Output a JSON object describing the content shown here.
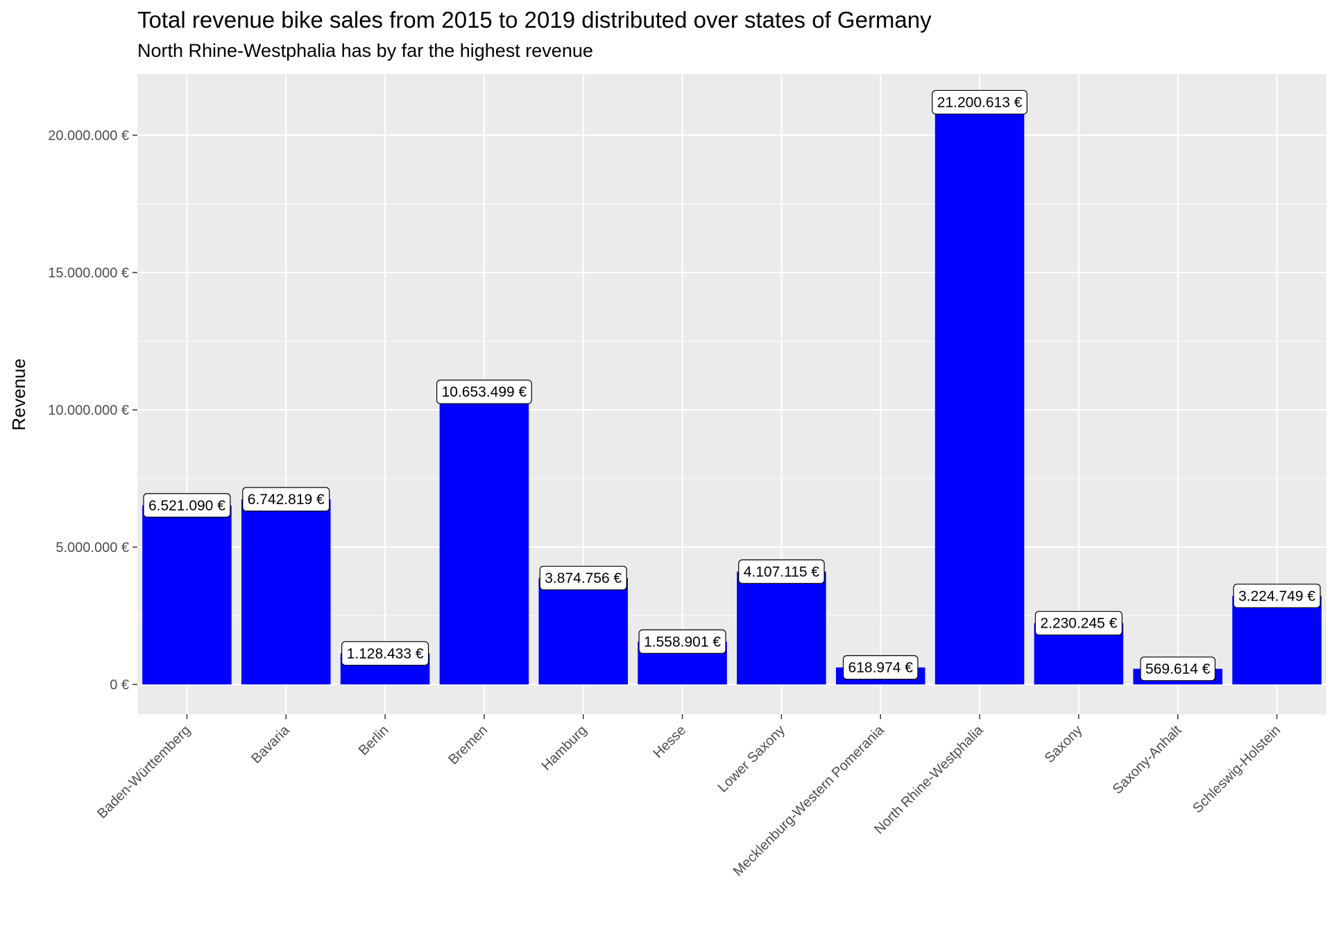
{
  "chart_data": {
    "type": "bar",
    "title": "Total revenue bike sales from 2015 to 2019 distributed over states of Germany",
    "subtitle": "North Rhine-Westphalia has by far the highest revenue",
    "xlabel": "",
    "ylabel": "Revenue",
    "categories": [
      "Baden-Württemberg",
      "Bavaria",
      "Berlin",
      "Bremen",
      "Hamburg",
      "Hesse",
      "Lower Saxony",
      "Mecklenburg-Western Pomerania",
      "North Rhine-Westphalia",
      "Saxony",
      "Saxony-Anhalt",
      "Schleswig-Holstein"
    ],
    "values": [
      6521090,
      6742819,
      1128433,
      10653499,
      3874756,
      1558901,
      4107115,
      618974,
      21200613,
      2230245,
      569614,
      3224749
    ],
    "value_labels": [
      "6.521.090 €",
      "6.742.819 €",
      "1.128.433 €",
      "10.653.499 €",
      "3.874.756 €",
      "1.558.901 €",
      "4.107.115 €",
      "618.974 €",
      "21.200.613 €",
      "2.230.245 €",
      "569.614 €",
      "3.224.749 €"
    ],
    "yticks": [
      0,
      5000000,
      10000000,
      15000000,
      20000000
    ],
    "ytick_labels": [
      "0 €",
      "5.000.000 €",
      "10.000.000 €",
      "15.000.000 €",
      "20.000.000 €"
    ],
    "ylim": [
      0,
      22200000
    ],
    "grid": true,
    "legend": "none",
    "colors": {
      "bar": "#0000ff",
      "panel": "#ebebeb",
      "grid": "#ffffff"
    }
  }
}
